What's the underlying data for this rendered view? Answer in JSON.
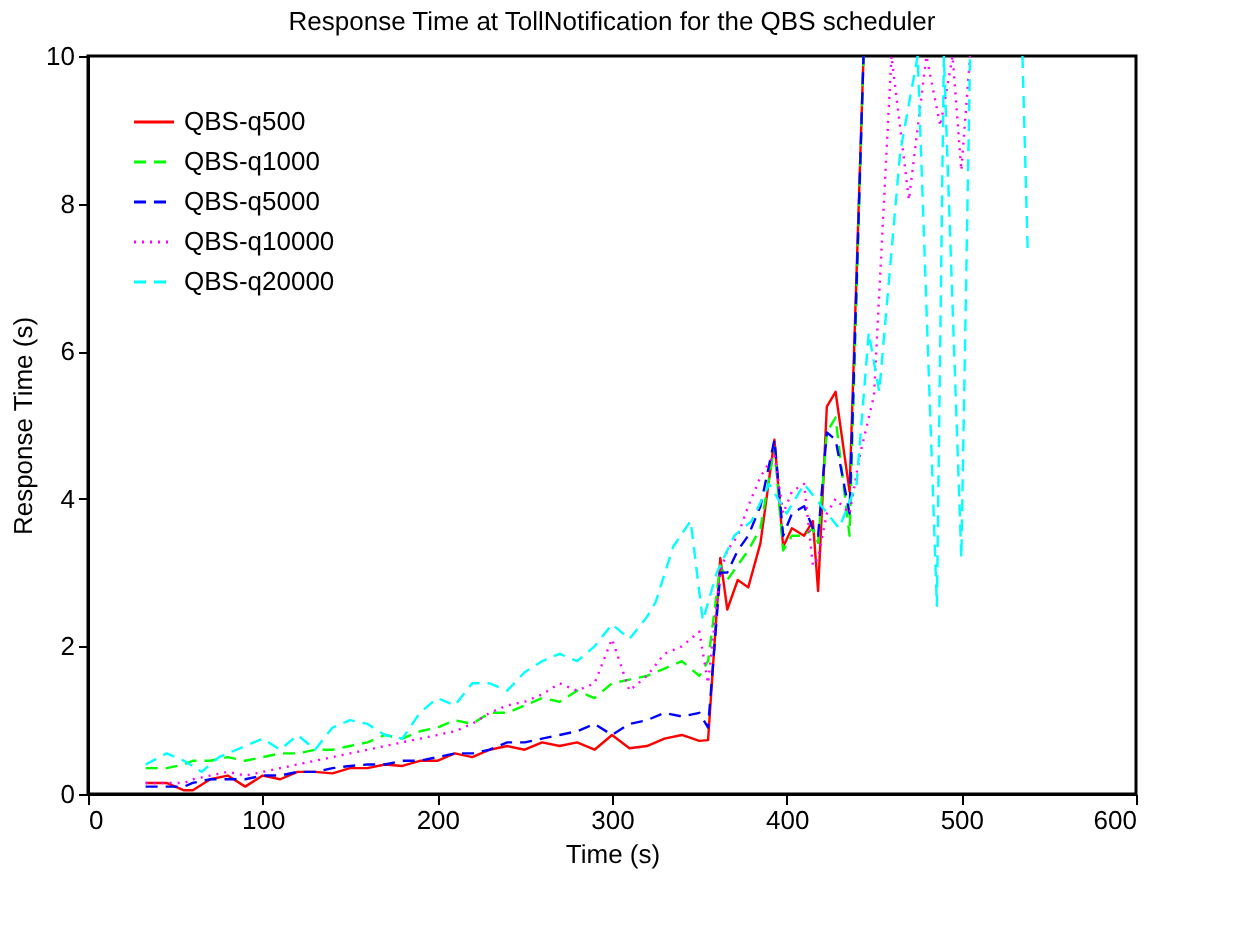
{
  "chart_data": {
    "type": "line",
    "title": "Response Time at TollNotification for the QBS scheduler",
    "xlabel": "Time (s)",
    "ylabel": "Response Time (s)",
    "xlim": [
      0,
      600
    ],
    "xticks": [
      0,
      100,
      200,
      300,
      400,
      500,
      600
    ],
    "ylim": [
      0,
      10
    ],
    "yticks": [
      0,
      2,
      4,
      6,
      8,
      10
    ],
    "grid": false,
    "legend": "top left",
    "marker": "none",
    "series": [
      {
        "name": "QBS-q500",
        "color": "#ff0000",
        "line_style": "solid",
        "x": [
          33,
          45,
          55,
          60,
          70,
          80,
          90,
          100,
          110,
          120,
          130,
          140,
          150,
          160,
          170,
          180,
          190,
          200,
          210,
          220,
          230,
          240,
          250,
          260,
          270,
          280,
          290,
          300,
          310,
          320,
          330,
          340,
          350,
          355,
          362,
          366,
          372,
          378,
          385,
          393,
          398,
          403,
          410,
          415,
          418,
          423,
          428,
          436,
          444
        ],
        "values": [
          0.15,
          0.15,
          0.05,
          0.05,
          0.2,
          0.25,
          0.1,
          0.25,
          0.2,
          0.3,
          0.3,
          0.28,
          0.35,
          0.35,
          0.4,
          0.38,
          0.45,
          0.45,
          0.55,
          0.5,
          0.6,
          0.65,
          0.6,
          0.7,
          0.65,
          0.7,
          0.6,
          0.8,
          0.62,
          0.65,
          0.75,
          0.8,
          0.72,
          0.73,
          3.2,
          2.5,
          2.9,
          2.8,
          3.4,
          4.8,
          3.35,
          3.6,
          3.5,
          3.7,
          2.75,
          5.25,
          5.45,
          4.1,
          10
        ]
      },
      {
        "name": "QBS-q1000",
        "color": "#00ff00",
        "line_style": "dashed",
        "x": [
          33,
          45,
          55,
          60,
          70,
          80,
          90,
          100,
          110,
          120,
          130,
          140,
          150,
          160,
          170,
          180,
          190,
          200,
          210,
          220,
          230,
          240,
          250,
          260,
          270,
          280,
          290,
          300,
          310,
          320,
          330,
          340,
          350,
          355,
          362,
          366,
          372,
          378,
          385,
          393,
          398,
          403,
          410,
          415,
          418,
          423,
          428,
          436,
          444
        ],
        "values": [
          0.35,
          0.35,
          0.4,
          0.45,
          0.45,
          0.5,
          0.45,
          0.5,
          0.55,
          0.55,
          0.6,
          0.6,
          0.65,
          0.7,
          0.8,
          0.75,
          0.85,
          0.9,
          1.0,
          0.95,
          1.1,
          1.1,
          1.2,
          1.3,
          1.25,
          1.4,
          1.3,
          1.5,
          1.55,
          1.6,
          1.7,
          1.8,
          1.6,
          1.8,
          3.1,
          2.9,
          3.1,
          3.3,
          3.6,
          4.7,
          3.3,
          3.5,
          3.5,
          3.6,
          3.4,
          4.9,
          5.1,
          3.5,
          10
        ]
      },
      {
        "name": "QBS-q5000",
        "color": "#0000ff",
        "line_style": "dashed",
        "x": [
          33,
          45,
          55,
          60,
          70,
          80,
          90,
          100,
          110,
          120,
          130,
          140,
          150,
          160,
          170,
          180,
          190,
          200,
          210,
          220,
          230,
          240,
          250,
          260,
          270,
          280,
          290,
          300,
          310,
          320,
          330,
          340,
          350,
          355,
          362,
          366,
          372,
          378,
          385,
          393,
          398,
          403,
          410,
          415,
          418,
          423,
          428,
          436,
          444
        ],
        "values": [
          0.1,
          0.1,
          0.1,
          0.15,
          0.2,
          0.2,
          0.2,
          0.25,
          0.25,
          0.3,
          0.3,
          0.35,
          0.38,
          0.4,
          0.4,
          0.45,
          0.45,
          0.5,
          0.55,
          0.55,
          0.6,
          0.7,
          0.7,
          0.75,
          0.8,
          0.85,
          0.95,
          0.8,
          0.95,
          1.0,
          1.1,
          1.05,
          1.1,
          0.9,
          3.0,
          3.0,
          3.3,
          3.5,
          3.9,
          4.8,
          3.5,
          3.8,
          3.9,
          3.6,
          3.5,
          4.9,
          4.8,
          3.8,
          10
        ]
      },
      {
        "name": "QBS-q10000",
        "color": "#ff00ff",
        "line_style": "dotted",
        "x": [
          33,
          45,
          55,
          60,
          70,
          80,
          90,
          100,
          110,
          120,
          130,
          140,
          150,
          160,
          170,
          180,
          190,
          200,
          210,
          220,
          230,
          240,
          250,
          260,
          270,
          280,
          290,
          300,
          310,
          320,
          330,
          340,
          350,
          355,
          362,
          366,
          372,
          378,
          385,
          393,
          398,
          403,
          410,
          415,
          418,
          423,
          428,
          436,
          442,
          450,
          455,
          460,
          470,
          480,
          488,
          495,
          500,
          505
        ],
        "values": [
          0.15,
          0.15,
          0.15,
          0.2,
          0.25,
          0.3,
          0.25,
          0.3,
          0.35,
          0.4,
          0.45,
          0.5,
          0.55,
          0.6,
          0.65,
          0.7,
          0.75,
          0.8,
          0.85,
          0.95,
          1.1,
          1.2,
          1.25,
          1.35,
          1.5,
          1.4,
          1.5,
          2.1,
          1.4,
          1.6,
          1.9,
          2.0,
          2.2,
          1.5,
          3.0,
          3.3,
          3.5,
          3.9,
          4.3,
          4.6,
          3.8,
          4.1,
          4.2,
          3.1,
          3.2,
          3.8,
          4.0,
          3.8,
          4.6,
          5.4,
          7.7,
          10,
          8.05,
          10,
          9.05,
          10,
          8.45,
          10
        ]
      },
      {
        "name": "QBS-q20000",
        "color": "#00ffff",
        "line_style": "dashed",
        "x": [
          33,
          45,
          55,
          65,
          75,
          90,
          100,
          110,
          120,
          130,
          140,
          150,
          160,
          170,
          180,
          190,
          200,
          210,
          220,
          230,
          240,
          250,
          260,
          270,
          280,
          290,
          300,
          310,
          320,
          325,
          335,
          345,
          352,
          360,
          370,
          380,
          390,
          400,
          410,
          420,
          430,
          440,
          447,
          453,
          465,
          475,
          486,
          490,
          500,
          505,
          520,
          535,
          538
        ],
        "values": [
          0.4,
          0.55,
          0.45,
          0.3,
          0.5,
          0.65,
          0.75,
          0.6,
          0.8,
          0.6,
          0.9,
          1.0,
          0.95,
          0.8,
          0.75,
          1.1,
          1.3,
          1.2,
          1.5,
          1.5,
          1.4,
          1.65,
          1.8,
          1.9,
          1.8,
          2.0,
          2.3,
          2.1,
          2.4,
          2.6,
          3.35,
          3.7,
          2.35,
          3.0,
          3.5,
          3.7,
          4.2,
          3.8,
          4.2,
          3.9,
          3.6,
          4.2,
          6.25,
          5.45,
          8.7,
          10,
          2.55,
          10,
          3.2,
          10,
          null,
          10,
          7.35
        ]
      }
    ]
  }
}
